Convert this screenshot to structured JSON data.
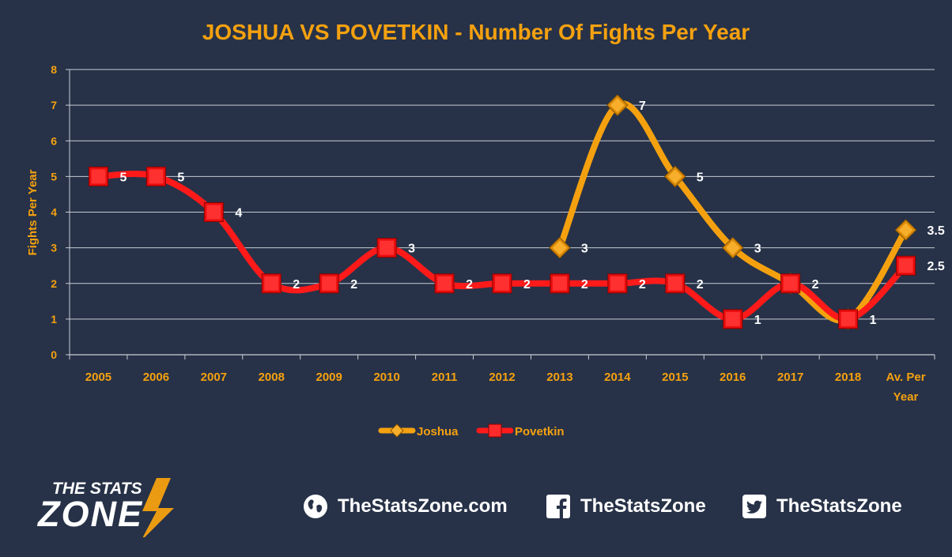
{
  "chart_data": {
    "type": "line",
    "title": "JOSHUA VS POVETKIN - Number Of Fights Per Year",
    "ylabel": "Fights Per Year",
    "xlabel": "",
    "categories": [
      "2005",
      "2006",
      "2007",
      "2008",
      "2009",
      "2010",
      "2011",
      "2012",
      "2013",
      "2014",
      "2015",
      "2016",
      "2017",
      "2018",
      "Av. Per Year"
    ],
    "ylim": [
      0,
      8
    ],
    "yticks": [
      0,
      1,
      2,
      3,
      4,
      5,
      6,
      7,
      8
    ],
    "grid": true,
    "legend_position": "bottom",
    "series": [
      {
        "name": "Joshua",
        "color": "#f5a10f",
        "marker": "diamond",
        "values": [
          null,
          null,
          null,
          null,
          null,
          null,
          null,
          null,
          3,
          7,
          5,
          3,
          2,
          1,
          3.5
        ],
        "labels": [
          "",
          "",
          "",
          "",
          "",
          "",
          "",
          "",
          "3",
          "7",
          "5",
          "3",
          "",
          "",
          "3.5"
        ]
      },
      {
        "name": "Povetkin",
        "color": "#ff1a1a",
        "marker": "square",
        "values": [
          5,
          5,
          4,
          2,
          2,
          3,
          2,
          2,
          2,
          2,
          2,
          1,
          2,
          1,
          2.5
        ],
        "labels": [
          "5",
          "5",
          "4",
          "2",
          "2",
          "3",
          "2",
          "2",
          "2",
          "2",
          "2",
          "1",
          "2",
          "1",
          "2.5"
        ]
      }
    ]
  },
  "colors": {
    "background": "#273248",
    "accent": "#f5a10f",
    "grid": "#c8ccd4"
  },
  "footer": {
    "logo_line1": "THE STATS",
    "logo_line2": "ZONE",
    "website": "TheStatsZone.com",
    "facebook": "TheStatsZone",
    "twitter": "TheStatsZone",
    "website_icon": "globe-icon",
    "facebook_icon": "facebook-icon",
    "twitter_icon": "twitter-icon"
  }
}
